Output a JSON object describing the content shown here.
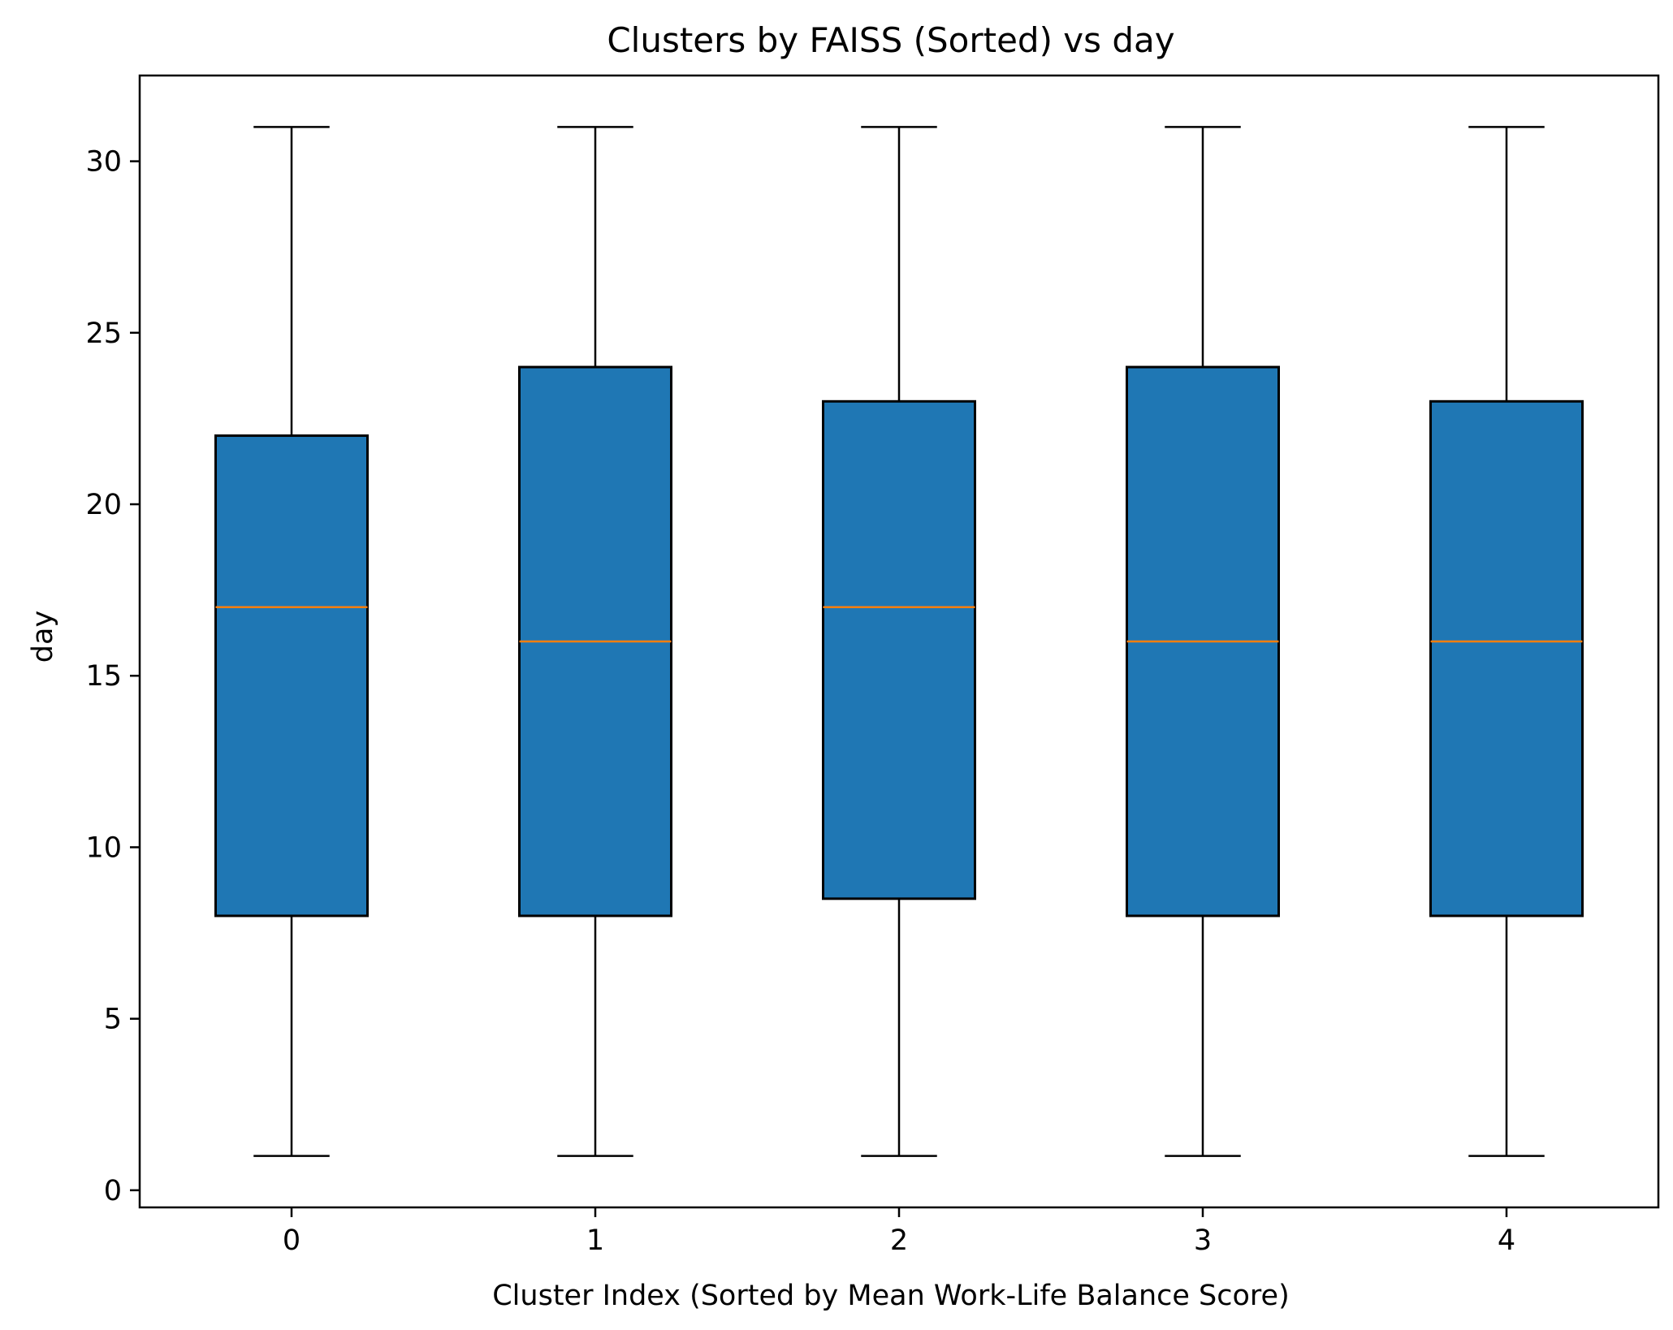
{
  "chart_data": {
    "type": "box",
    "title": "Clusters by FAISS (Sorted) vs day",
    "xlabel": "Cluster Index (Sorted by Mean Work-Life Balance Score)",
    "ylabel": "day",
    "ylim": [
      -0.5,
      32.5
    ],
    "yticks": [
      0,
      5,
      10,
      15,
      20,
      25,
      30
    ],
    "categories": [
      "0",
      "1",
      "2",
      "3",
      "4"
    ],
    "boxes": [
      {
        "category": "0",
        "whisker_low": 1,
        "q1": 8,
        "median": 17,
        "q3": 22,
        "whisker_high": 31
      },
      {
        "category": "1",
        "whisker_low": 1,
        "q1": 8,
        "median": 16,
        "q3": 24,
        "whisker_high": 31
      },
      {
        "category": "2",
        "whisker_low": 1,
        "q1": 8.5,
        "median": 17,
        "q3": 23,
        "whisker_high": 31
      },
      {
        "category": "3",
        "whisker_low": 1,
        "q1": 8,
        "median": 16,
        "q3": 24,
        "whisker_high": 31
      },
      {
        "category": "4",
        "whisker_low": 1,
        "q1": 8,
        "median": 16,
        "q3": 23,
        "whisker_high": 31
      }
    ],
    "grid": false,
    "legend": "none",
    "colors": {
      "box_fill": "#1f77b4",
      "median": "#ff7f0e",
      "line": "#000000"
    }
  }
}
